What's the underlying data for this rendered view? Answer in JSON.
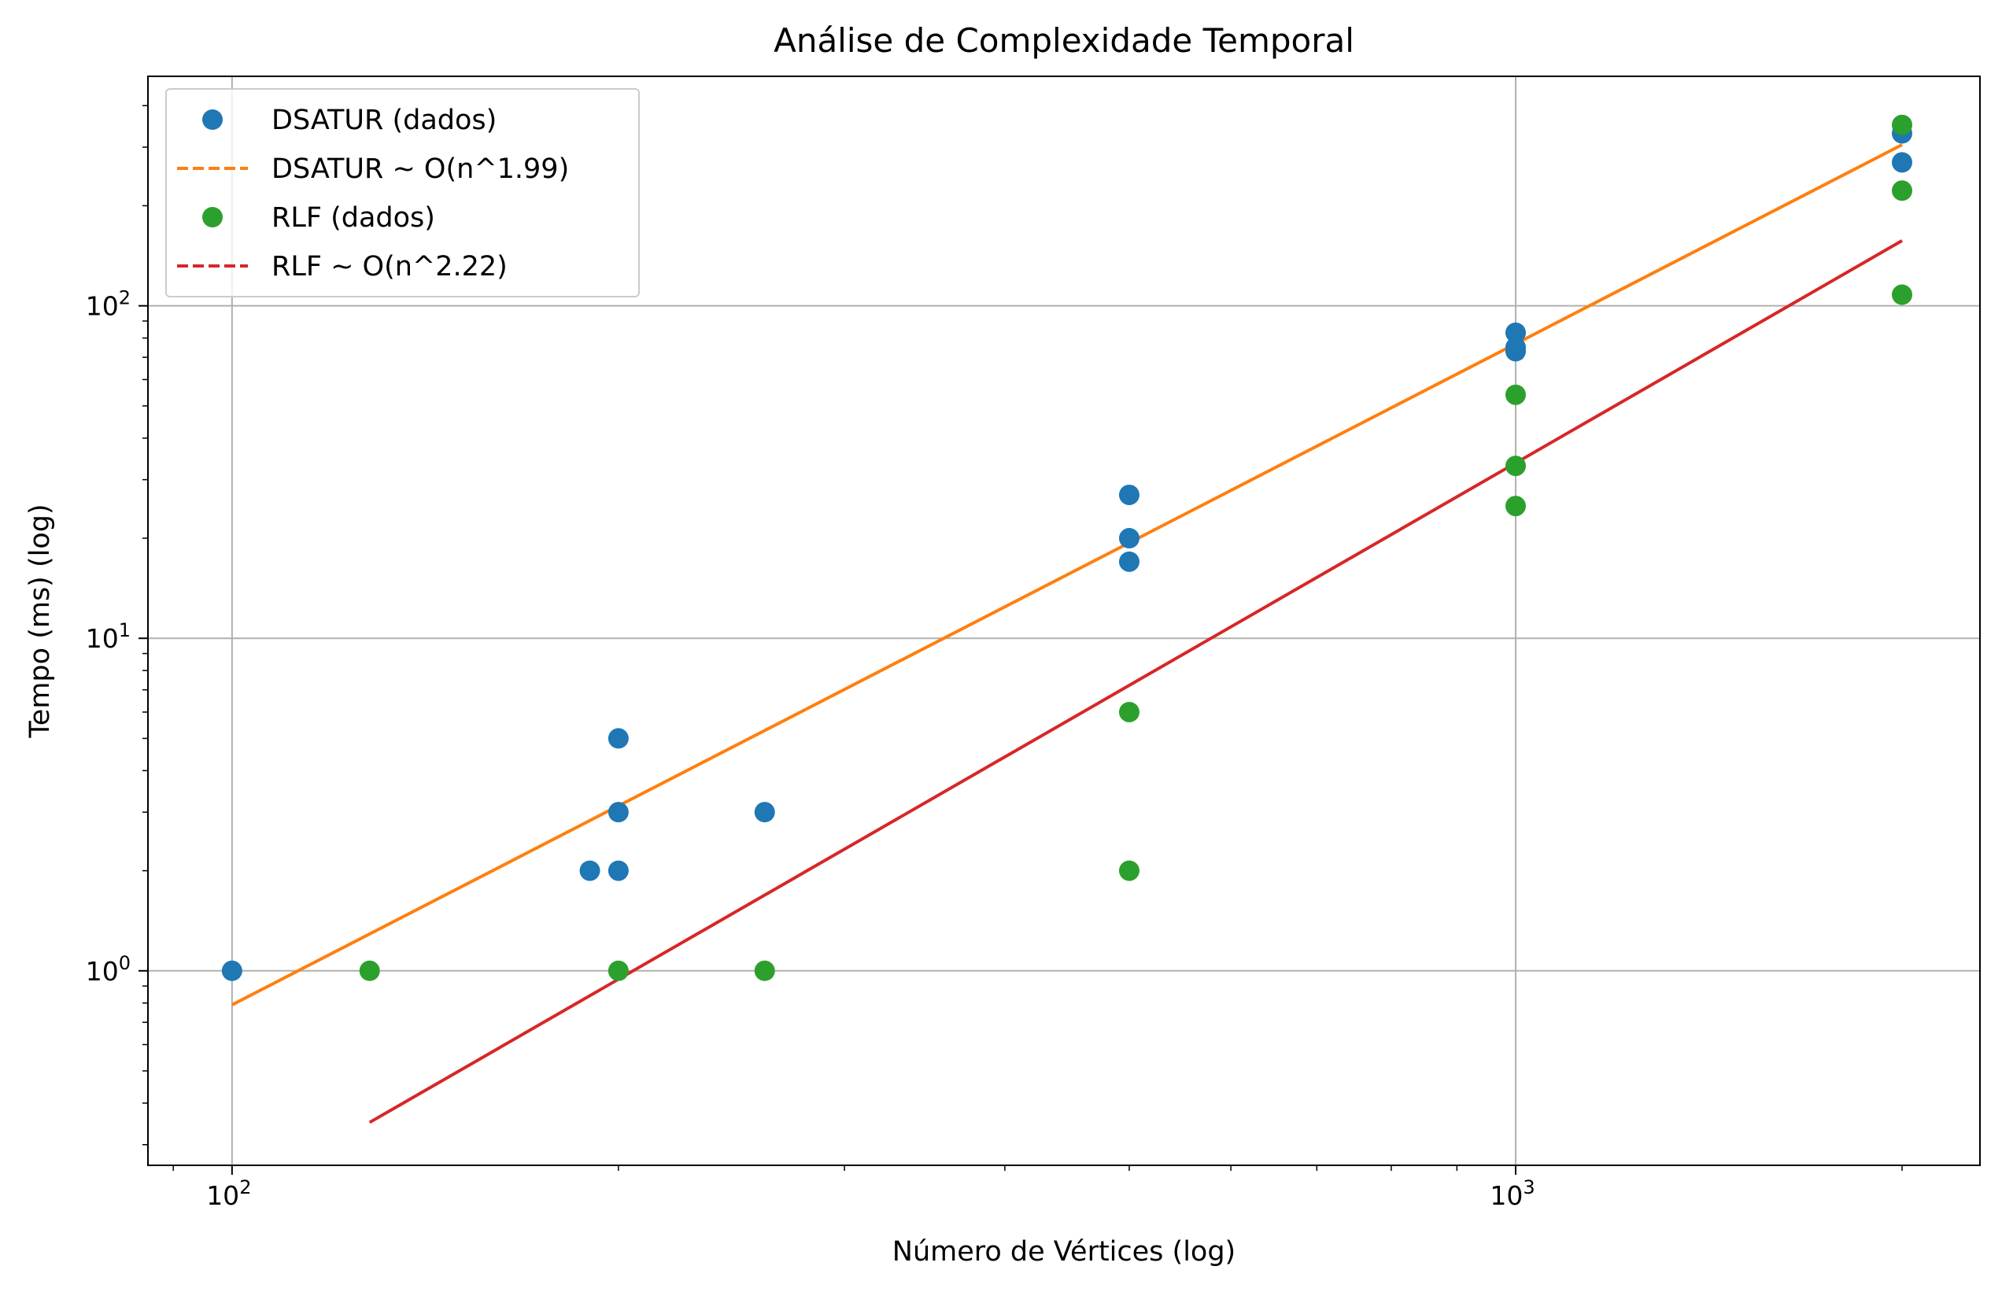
{
  "chart_data": {
    "type": "scatter",
    "title": "Análise de Complexidade Temporal",
    "xlabel": "Número de Vértices (log)",
    "ylabel": "Tempo (ms) (log)",
    "xscale": "log",
    "yscale": "log",
    "xlim": [
      86,
      2300
    ],
    "ylim": [
      0.26,
      490
    ],
    "grid": true,
    "legend_position": "top-left",
    "x_major_ticks": [
      {
        "value": 100,
        "base": "10",
        "exp": "2"
      },
      {
        "value": 1000,
        "base": "10",
        "exp": "3"
      }
    ],
    "y_major_ticks": [
      {
        "value": 1,
        "base": "10",
        "exp": "0"
      },
      {
        "value": 10,
        "base": "10",
        "exp": "1"
      },
      {
        "value": 100,
        "base": "10",
        "exp": "2"
      }
    ],
    "series": [
      {
        "name": "DSATUR (dados)",
        "kind": "points",
        "color": "#1f77b4",
        "points": [
          [
            100,
            1
          ],
          [
            190,
            2
          ],
          [
            200,
            2
          ],
          [
            200,
            3
          ],
          [
            200,
            5
          ],
          [
            260,
            3
          ],
          [
            500,
            17
          ],
          [
            500,
            20
          ],
          [
            500,
            27
          ],
          [
            1000,
            73
          ],
          [
            1000,
            75
          ],
          [
            1000,
            83
          ],
          [
            2000,
            270
          ],
          [
            2000,
            330
          ]
        ]
      },
      {
        "name": "DSATUR ~ O(n^1.99)",
        "kind": "fit",
        "color": "#ff7f0e",
        "line": [
          [
            100,
            0.79
          ],
          [
            2000,
            305
          ]
        ]
      },
      {
        "name": "RLF (dados)",
        "kind": "points",
        "color": "#2ca02c",
        "points": [
          [
            128,
            1
          ],
          [
            200,
            1
          ],
          [
            260,
            1
          ],
          [
            500,
            2
          ],
          [
            500,
            6
          ],
          [
            1000,
            25
          ],
          [
            1000,
            33
          ],
          [
            1000,
            54
          ],
          [
            2000,
            108
          ],
          [
            2000,
            222
          ],
          [
            2000,
            350
          ]
        ]
      },
      {
        "name": "RLF ~ O(n^2.22)",
        "kind": "fit",
        "color": "#d62728",
        "line": [
          [
            128,
            0.35
          ],
          [
            2000,
            157
          ]
        ]
      }
    ]
  }
}
